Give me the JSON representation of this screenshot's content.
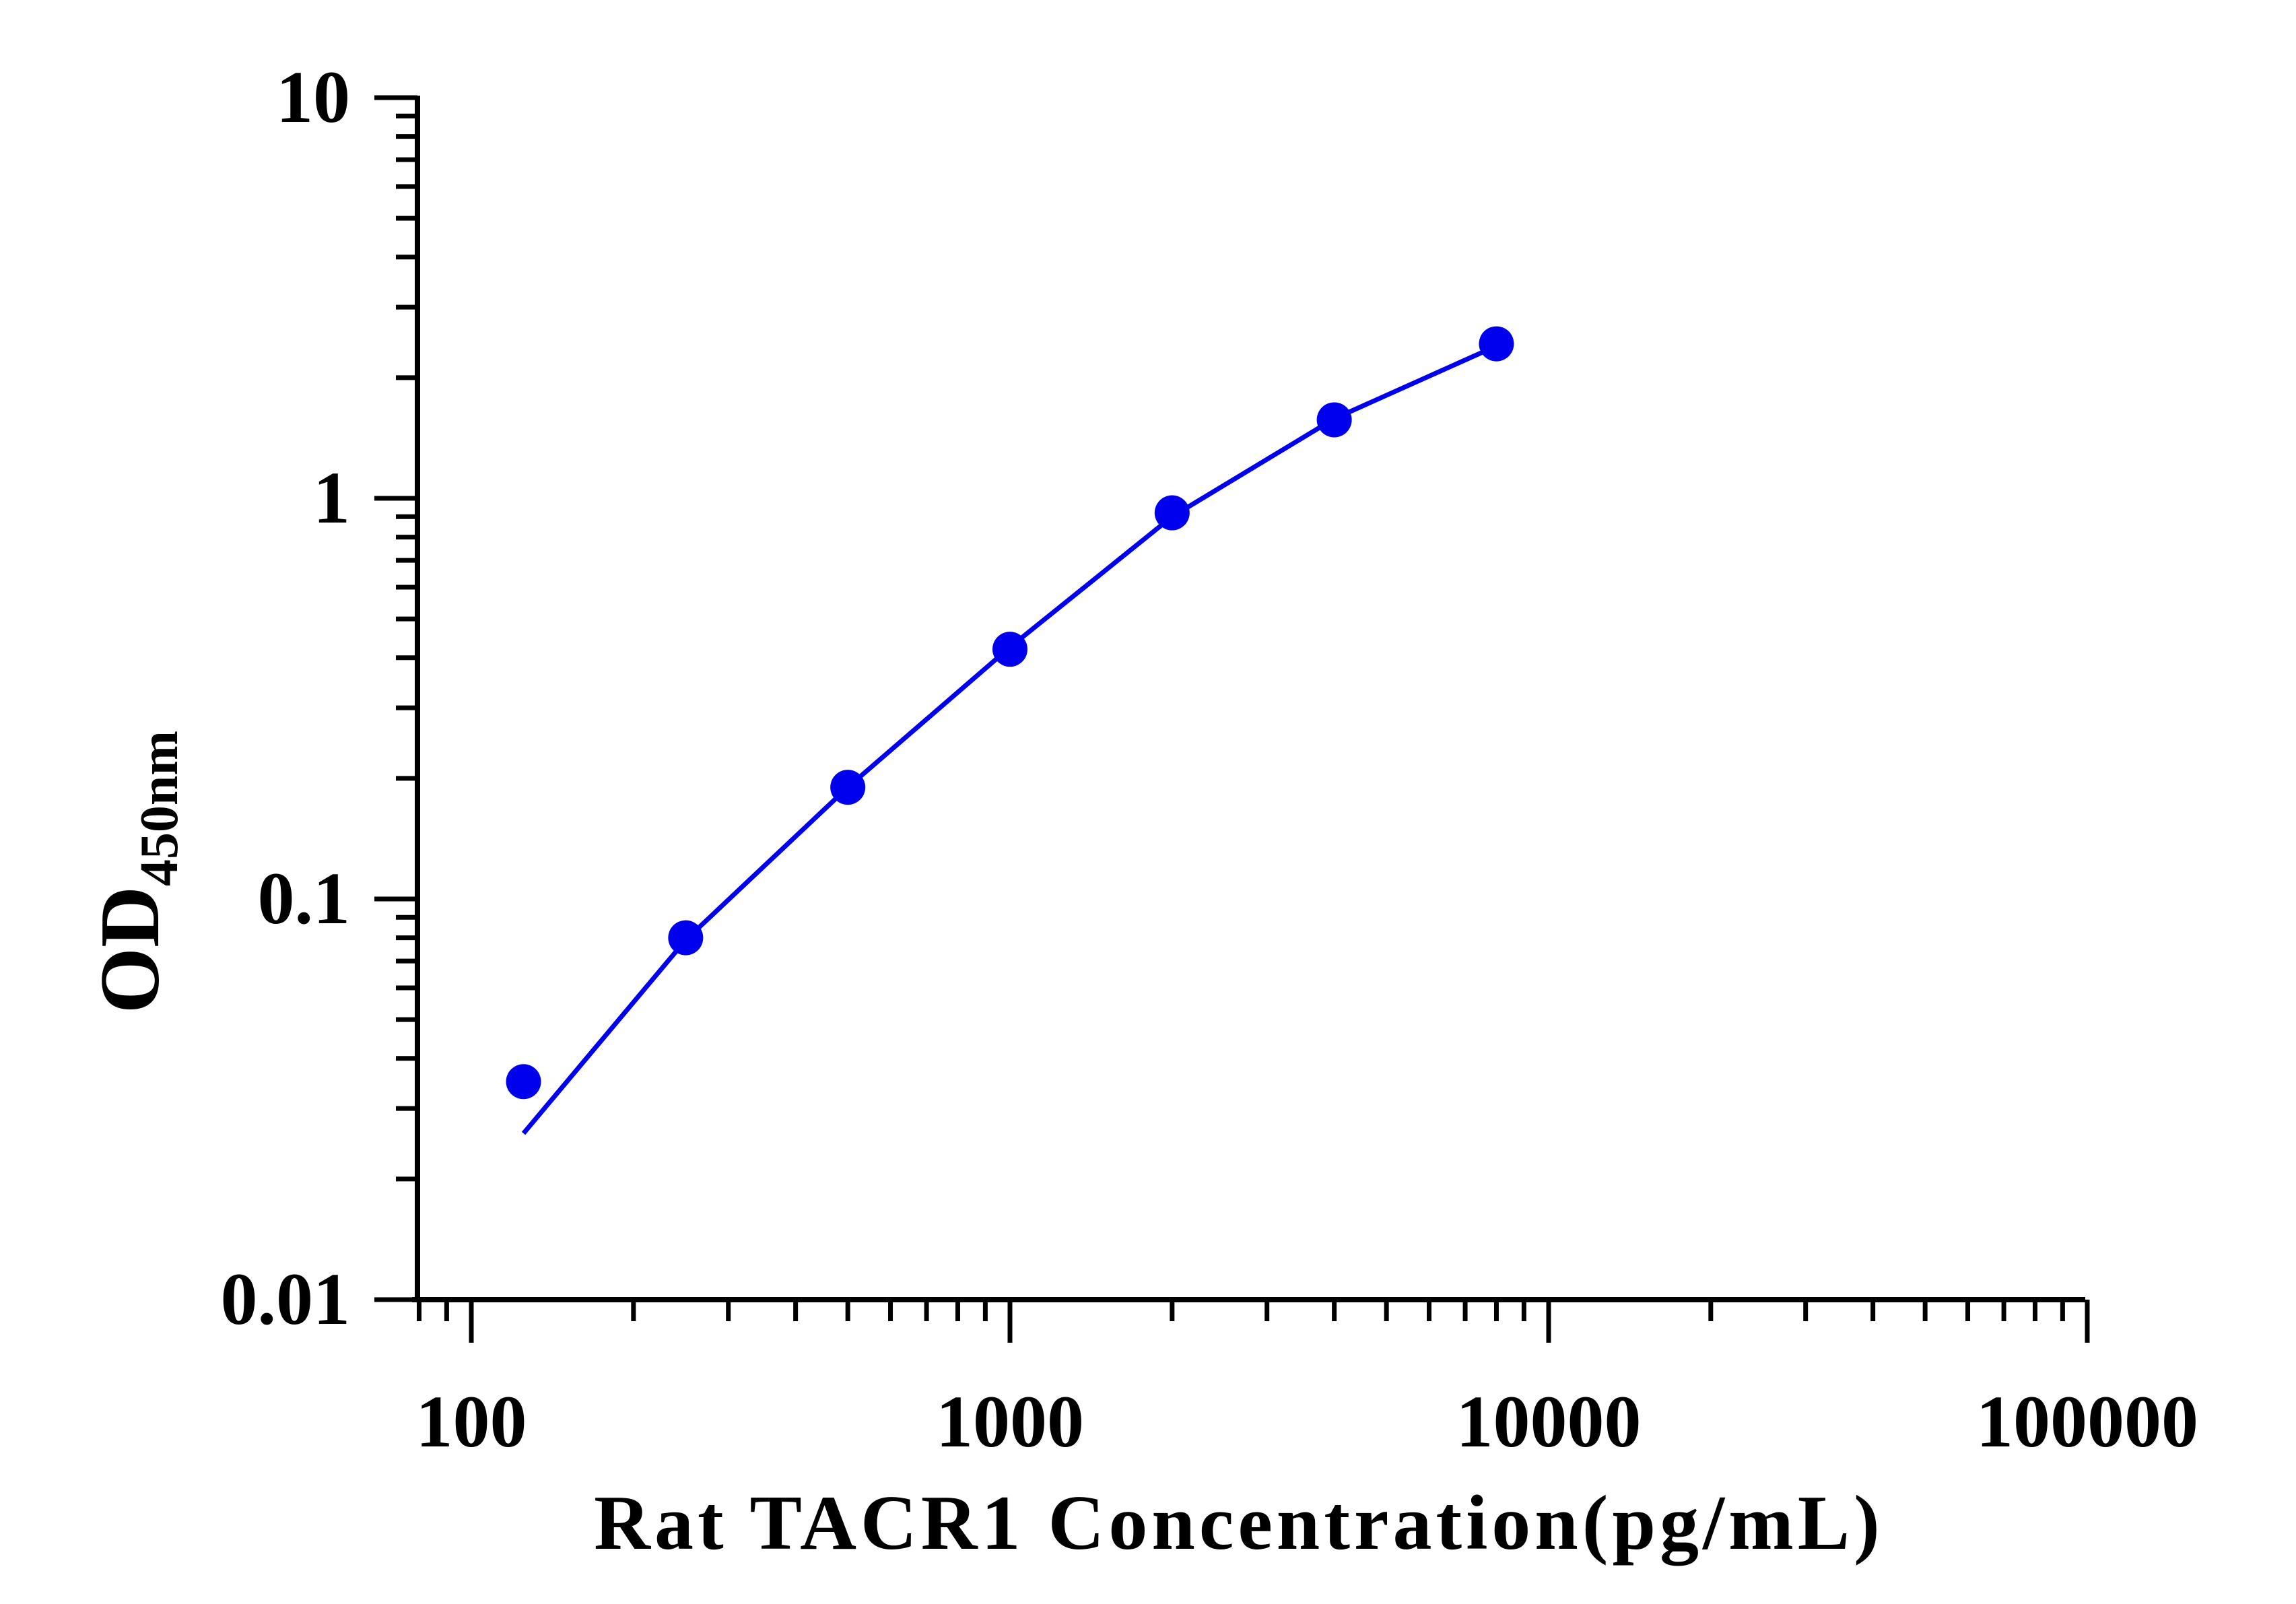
{
  "chart_data": {
    "type": "scatter",
    "xlabel": "Rat TACR1 Concentration(pg/mL)",
    "ylabel": "OD",
    "ylabel_subscript": "450nm",
    "x_scale": "log",
    "y_scale": "log",
    "xlim": [
      80,
      100000
    ],
    "ylim": [
      0.01,
      10
    ],
    "x_tick_labels": [
      "100",
      "1000",
      "10000",
      "100000"
    ],
    "x_tick_values": [
      100,
      1000,
      10000,
      100000
    ],
    "y_tick_labels": [
      "10",
      "1",
      "0.1",
      "0.01"
    ],
    "y_tick_values": [
      10,
      1,
      0.1,
      0.01
    ],
    "grid": false,
    "color": "#0000ee",
    "series": [
      {
        "points": [
          {
            "x": 125,
            "y": 0.035
          },
          {
            "x": 250,
            "y": 0.08
          },
          {
            "x": 500,
            "y": 0.19
          },
          {
            "x": 1000,
            "y": 0.42
          },
          {
            "x": 2000,
            "y": 0.92
          },
          {
            "x": 4000,
            "y": 1.57
          },
          {
            "x": 8000,
            "y": 2.43
          }
        ],
        "fit_curve": [
          {
            "x": 125,
            "y": 0.026
          },
          {
            "x": 250,
            "y": 0.079
          },
          {
            "x": 500,
            "y": 0.19
          },
          {
            "x": 1000,
            "y": 0.425
          },
          {
            "x": 2000,
            "y": 0.9
          },
          {
            "x": 4000,
            "y": 1.58
          },
          {
            "x": 8000,
            "y": 2.4
          }
        ]
      }
    ]
  }
}
